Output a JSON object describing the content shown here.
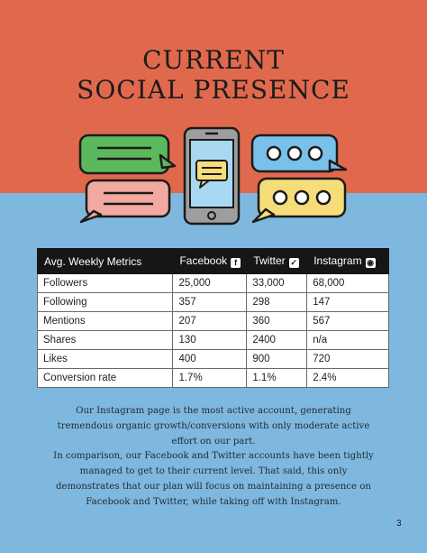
{
  "title_line1": "CURRENT",
  "title_line2": "SOCIAL PRESENCE",
  "table": {
    "headers": [
      "Avg. Weekly Metrics",
      "Facebook",
      "Twitter",
      "Instagram"
    ],
    "header_icons": [
      "",
      "facebook-icon",
      "twitter-icon",
      "instagram-icon"
    ],
    "rows": [
      [
        "Followers",
        "25,000",
        "33,000",
        "68,000"
      ],
      [
        "Following",
        "357",
        "298",
        "147"
      ],
      [
        "Mentions",
        "207",
        "360",
        "567"
      ],
      [
        "Shares",
        "130",
        "2400",
        "n/a"
      ],
      [
        "Likes",
        "400",
        "900",
        "720"
      ],
      [
        "Conversion rate",
        "1.7%",
        "1.1%",
        "2.4%"
      ]
    ]
  },
  "paragraph1": "Our Instagram page is the most active account, generating tremendous organic growth/conversions with only moderate active effort on our part.",
  "paragraph2": "In comparison, our Facebook and Twitter accounts have been tightly managed to get to their current level. That said, this only demonstrates that our plan will focus on maintaining a presence on Facebook and Twitter, while taking off with Instagram.",
  "page_number": "3",
  "colors": {
    "top_background": "#e0694d",
    "bottom_background": "#7fb8de",
    "bubble_green": "#5cb85c",
    "bubble_pink": "#f2a9a0",
    "bubble_blue": "#79c0ea",
    "bubble_yellow": "#f7dc7a",
    "phone_body": "#9e9e9e"
  }
}
